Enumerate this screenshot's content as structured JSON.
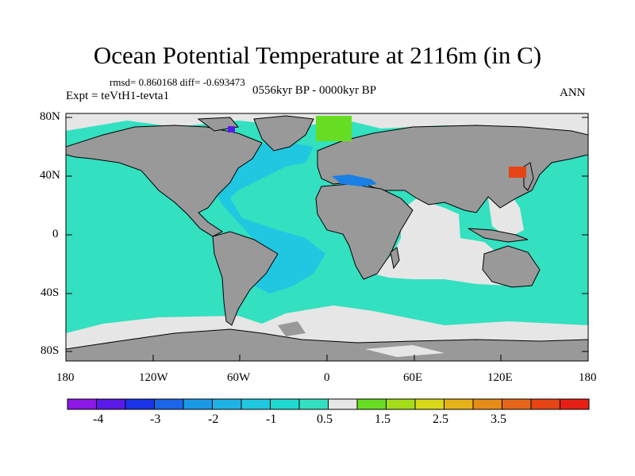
{
  "title": "Ocean Potential Temperature at 2116m (in C)",
  "stats": "rmsd= 0.860168 diff= -0.693473",
  "experiment": "Expt = teVtH1-tevta1",
  "period": "0556kyr BP - 0000kyr BP",
  "season": "ANN",
  "map": {
    "lat_ticks": [
      "80N",
      "40N",
      "0",
      "40S",
      "80S"
    ],
    "lon_ticks": [
      "180",
      "120W",
      "60W",
      "0",
      "60E",
      "120E",
      "180"
    ],
    "colors": {
      "land": "#999999",
      "ocean_default": "#33e0c0",
      "atlantic": "#1fc8e0",
      "near_zero": "#e6e6e6",
      "arctic_anomaly": "#66dd22",
      "japan_sea_anomaly": "#e64414",
      "mediterranean": "#1a80e6"
    }
  },
  "colorbar": {
    "colors": [
      "#8c19e6",
      "#5a19e6",
      "#1a33e6",
      "#1a66e6",
      "#1a99e6",
      "#1fb2e6",
      "#1fc8e0",
      "#1fd8d0",
      "#33e0c0",
      "#e6e6e6",
      "#66dd22",
      "#a6dd1a",
      "#d8d81a",
      "#e6b21a",
      "#e68c19",
      "#e66619",
      "#e64414",
      "#e61f14"
    ],
    "labels": [
      "-4",
      "-3",
      "-2",
      "-1",
      "0.5",
      "1.5",
      "2.5",
      "3.5"
    ]
  }
}
